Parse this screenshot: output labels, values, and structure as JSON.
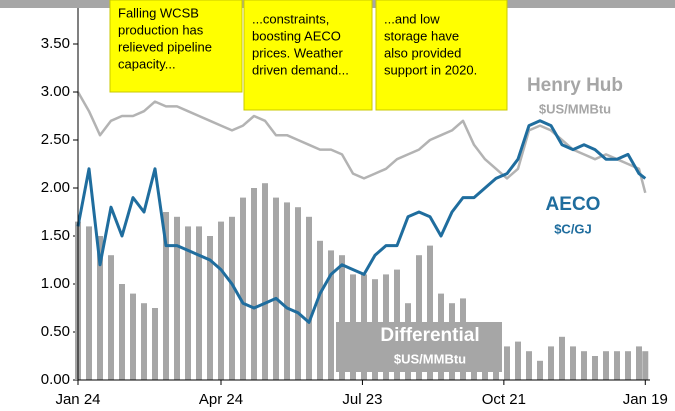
{
  "chart_data": {
    "type": "combo",
    "x": [
      0,
      7,
      14,
      21,
      28,
      35,
      42,
      49,
      56,
      63,
      70,
      77,
      84,
      91,
      98,
      105,
      112,
      119,
      126,
      133,
      140,
      147,
      154,
      161,
      168,
      175,
      182,
      189,
      196,
      203,
      210,
      217,
      224,
      231,
      238,
      245,
      252,
      259,
      266,
      273,
      280,
      287,
      294,
      301,
      308,
      315,
      322,
      329,
      336,
      343,
      350,
      357,
      361
    ],
    "xlim": [
      0,
      364
    ],
    "xticks": [
      {
        "value": 0,
        "label": "Jan 24"
      },
      {
        "value": 91,
        "label": "Apr 24"
      },
      {
        "value": 181,
        "label": "Jul 23"
      },
      {
        "value": 271,
        "label": "Oct 21"
      },
      {
        "value": 361,
        "label": "Jan 19"
      }
    ],
    "ylim": [
      0,
      3.5
    ],
    "yticks": [
      {
        "value": 0,
        "label": "0.00"
      },
      {
        "value": 0.5,
        "label": "0.50"
      },
      {
        "value": 1,
        "label": "1.00"
      },
      {
        "value": 1.5,
        "label": "1.50"
      },
      {
        "value": 2,
        "label": "2.00"
      },
      {
        "value": 2.5,
        "label": "2.50"
      },
      {
        "value": 3,
        "label": "3.00"
      },
      {
        "value": 3.5,
        "label": "3.50"
      }
    ],
    "series": [
      {
        "name": "Differential",
        "unit": "$US/MMBtu",
        "type": "bar",
        "color": "#a6a6a6",
        "values": [
          1.65,
          1.6,
          1.5,
          1.3,
          1.0,
          0.9,
          0.8,
          0.75,
          1.75,
          1.7,
          1.6,
          1.6,
          1.5,
          1.65,
          1.7,
          1.9,
          2.0,
          2.05,
          1.9,
          1.85,
          1.8,
          1.7,
          1.45,
          1.35,
          1.3,
          1.1,
          1.1,
          1.05,
          1.1,
          1.15,
          0.8,
          1.3,
          1.4,
          0.9,
          0.8,
          0.85,
          0.6,
          0.55,
          0.45,
          0.35,
          0.4,
          0.3,
          0.2,
          0.35,
          0.45,
          0.35,
          0.3,
          0.25,
          0.3,
          0.3,
          0.3,
          0.35,
          0.3
        ]
      },
      {
        "name": "Henry Hub",
        "unit": "$US/MMBtu",
        "type": "line",
        "color": "#b3b3b3",
        "values": [
          3.0,
          2.8,
          2.55,
          2.7,
          2.75,
          2.75,
          2.8,
          2.9,
          2.85,
          2.85,
          2.8,
          2.75,
          2.7,
          2.65,
          2.6,
          2.65,
          2.75,
          2.7,
          2.55,
          2.55,
          2.5,
          2.45,
          2.4,
          2.4,
          2.35,
          2.15,
          2.1,
          2.15,
          2.2,
          2.3,
          2.35,
          2.4,
          2.5,
          2.55,
          2.6,
          2.7,
          2.45,
          2.3,
          2.2,
          2.1,
          2.2,
          2.6,
          2.65,
          2.6,
          2.5,
          2.4,
          2.35,
          2.3,
          2.35,
          2.3,
          2.25,
          2.2,
          1.95
        ]
      },
      {
        "name": "AECO",
        "unit": "$C/GJ",
        "type": "line",
        "color": "#1f6d9e",
        "values": [
          1.6,
          2.2,
          1.2,
          1.8,
          1.5,
          1.9,
          1.75,
          2.2,
          1.4,
          1.4,
          1.35,
          1.3,
          1.25,
          1.15,
          1.0,
          0.8,
          0.75,
          0.8,
          0.85,
          0.75,
          0.7,
          0.6,
          0.9,
          1.1,
          1.2,
          1.15,
          1.1,
          1.3,
          1.4,
          1.4,
          1.7,
          1.75,
          1.7,
          1.5,
          1.75,
          1.9,
          1.9,
          2.0,
          2.1,
          2.15,
          2.3,
          2.65,
          2.7,
          2.65,
          2.45,
          2.4,
          2.45,
          2.4,
          2.3,
          2.3,
          2.35,
          2.15,
          2.1
        ]
      }
    ],
    "annotations": [
      {
        "lines": [
          "Falling WCSB",
          "production has",
          "relieved pipeline",
          "capacity..."
        ]
      },
      {
        "lines": [
          "...constraints,",
          "boosting AECO",
          "prices. Weather",
          "driven demand..."
        ]
      },
      {
        "lines": [
          "...and low",
          "storage have",
          "also provided",
          "support in 2020."
        ]
      }
    ]
  }
}
